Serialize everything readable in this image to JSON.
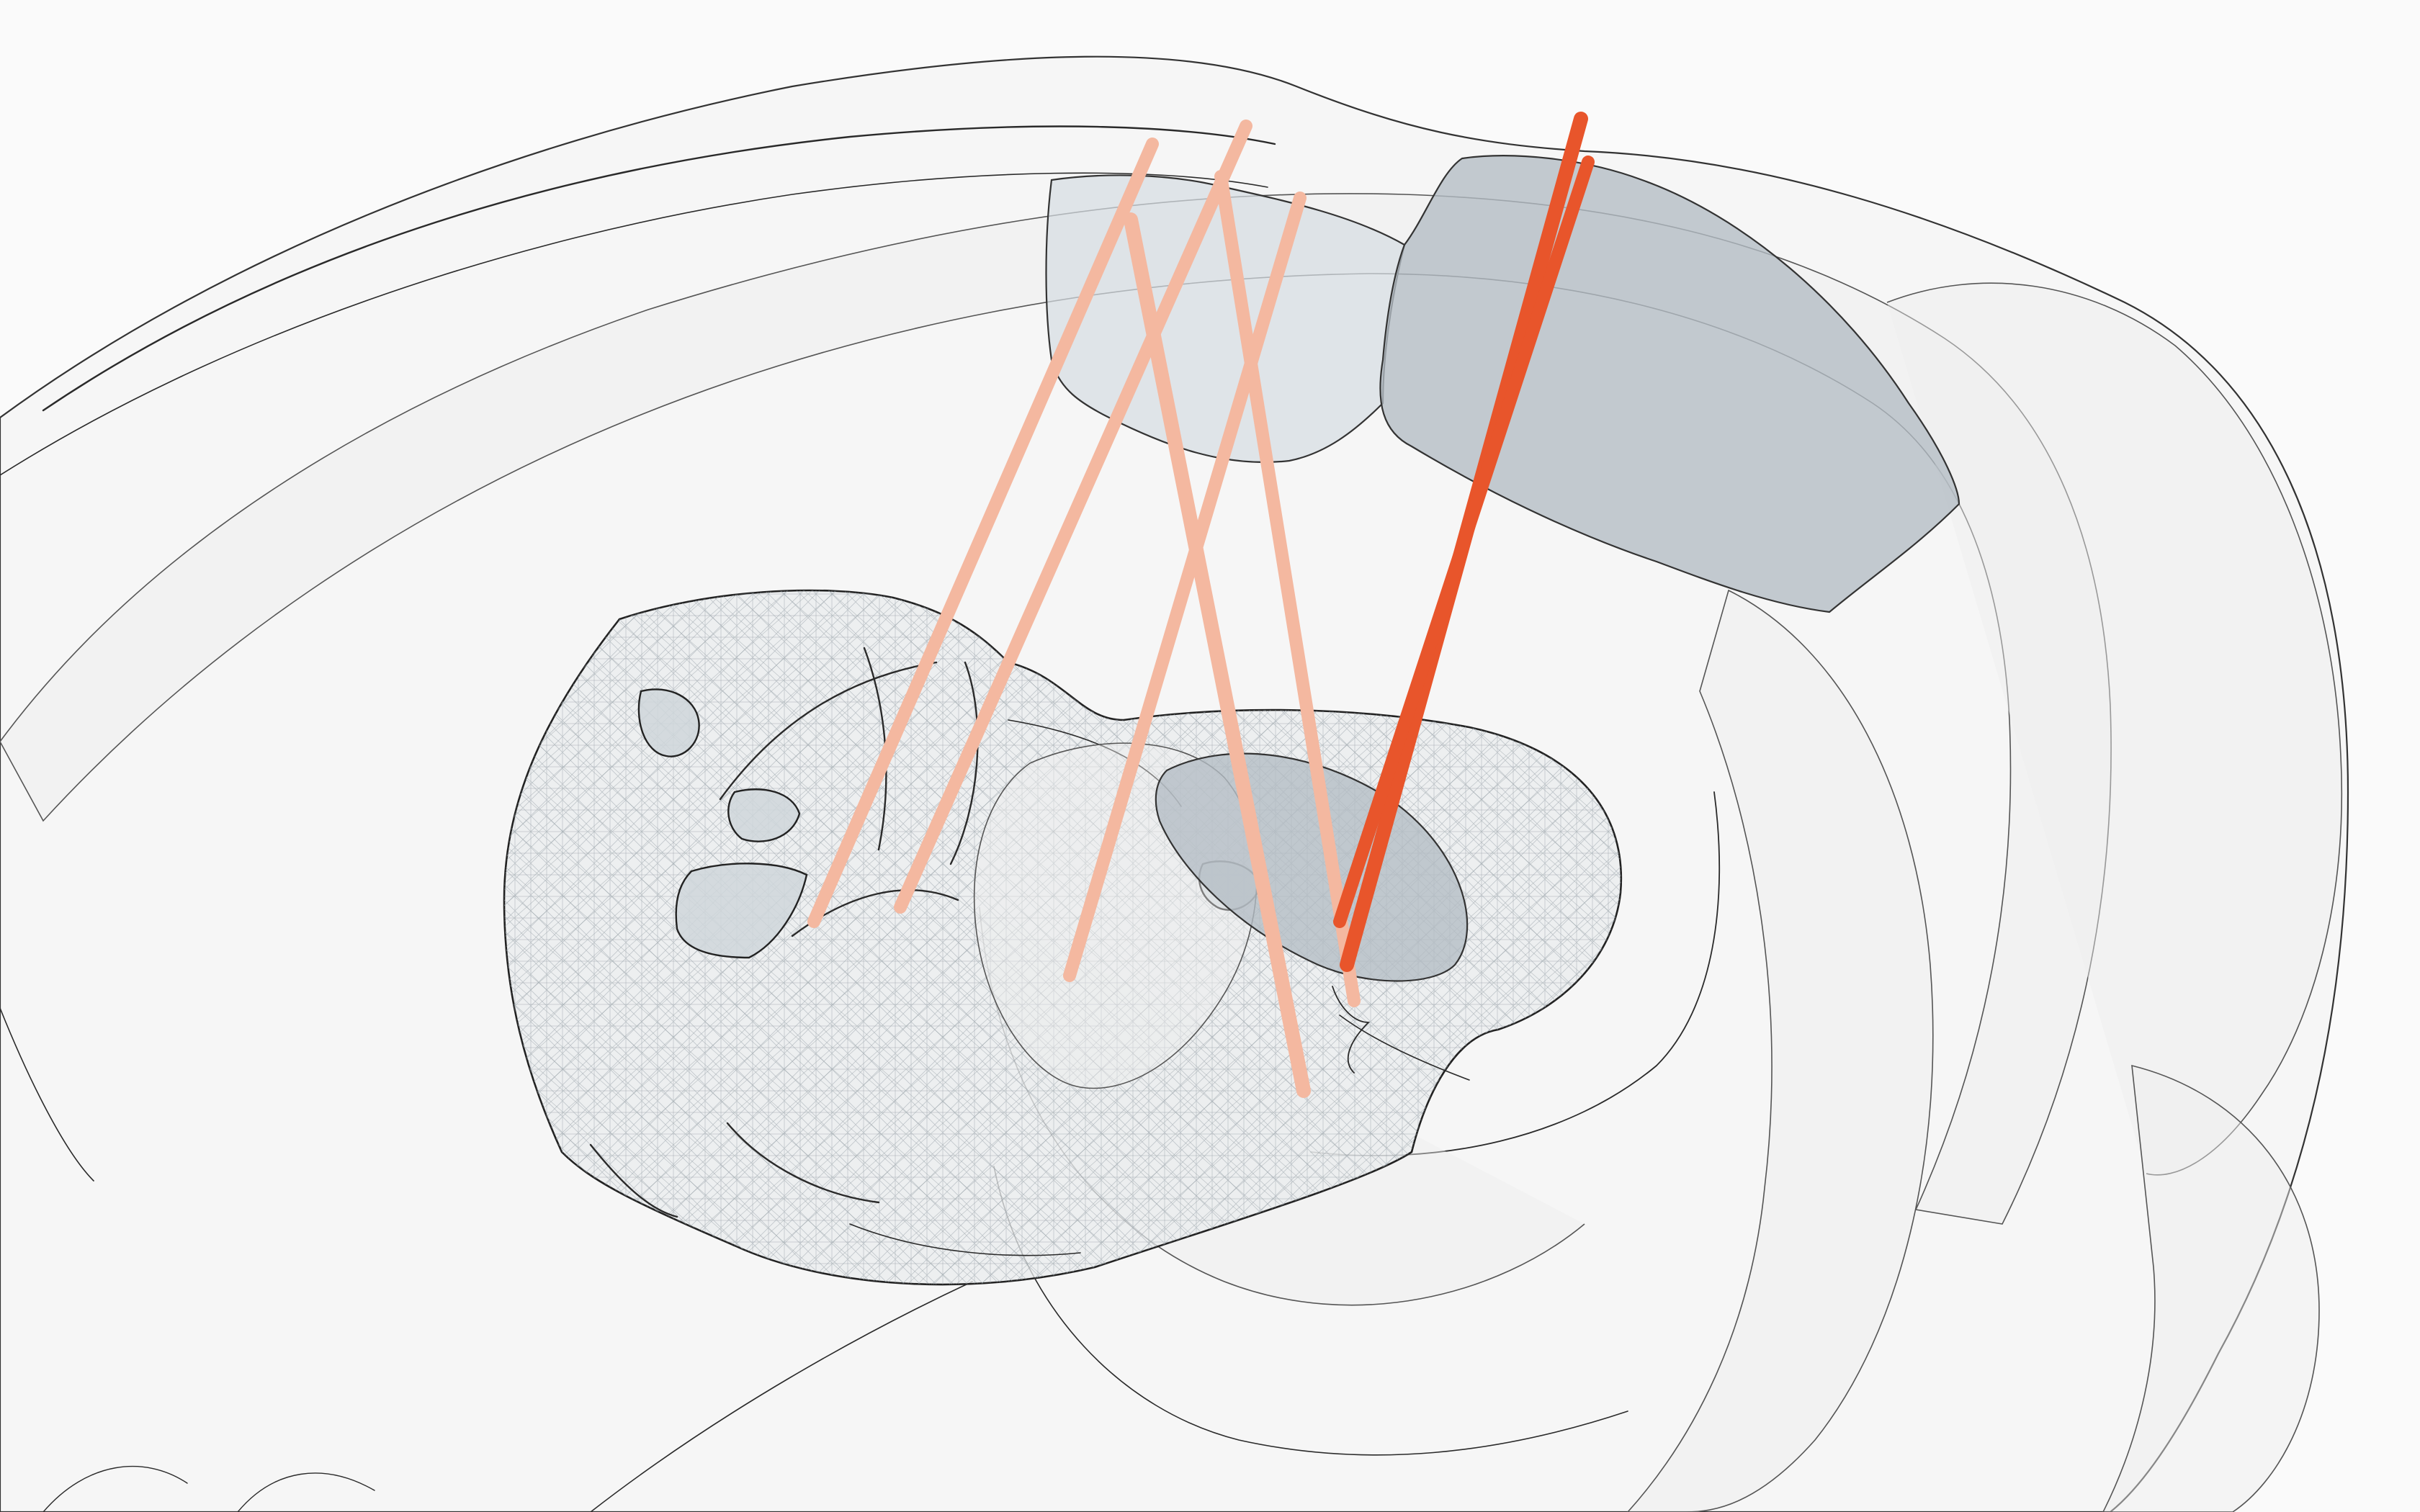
{
  "scene": {
    "background": "#fafafa",
    "probe_colors": {
      "light": "#f4b8a0",
      "dark": "#e8552b"
    },
    "region_colors": {
      "dark": "#b4bdc4",
      "light": "#d6dde2",
      "mesh": "#e9ecee"
    },
    "probes": [
      {
        "tone": "light"
      },
      {
        "tone": "light"
      },
      {
        "tone": "light"
      },
      {
        "tone": "light"
      },
      {
        "tone": "light"
      },
      {
        "tone": "dark"
      },
      {
        "tone": "dark"
      },
      {
        "tone": "dark"
      }
    ]
  }
}
